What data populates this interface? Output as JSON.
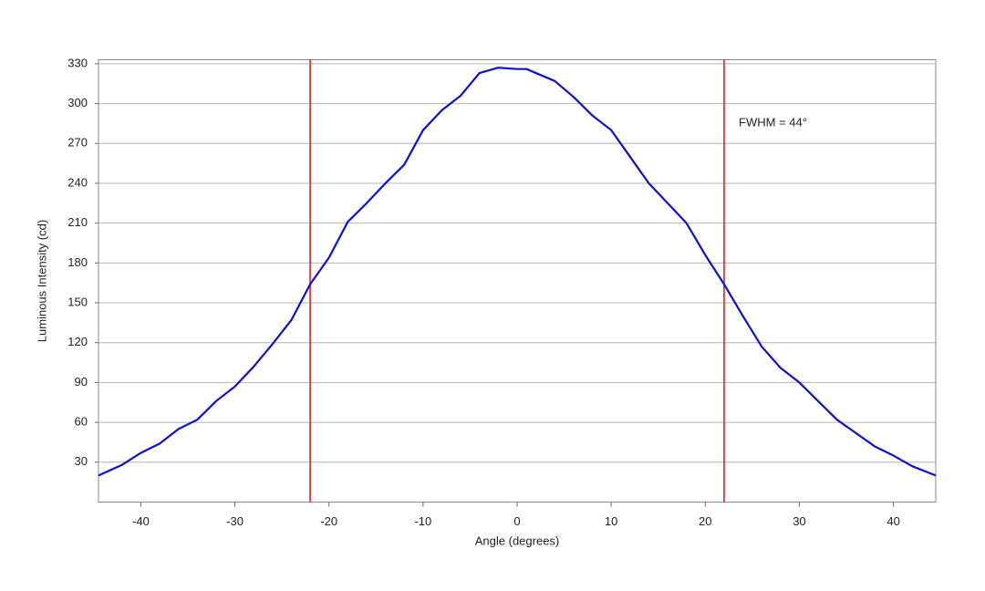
{
  "chart_data": {
    "type": "line",
    "x_label": "Angle (degrees)",
    "y_label": "Luminous Intensity (cd)",
    "annotation": "FWHM = 44°",
    "x": [
      -44.5,
      -42,
      -40,
      -38,
      -36,
      -34,
      -32,
      -30,
      -28,
      -26,
      -24,
      -22,
      -20,
      -18,
      -16,
      -14,
      -12,
      -10,
      -8,
      -6,
      -4,
      -2,
      0,
      1,
      2,
      4,
      6,
      8,
      10,
      12,
      14,
      16,
      18,
      20,
      22,
      24,
      26,
      28,
      30,
      32,
      34,
      36,
      38,
      40,
      42,
      44.5
    ],
    "series": [
      {
        "name": "Luminous Intensity",
        "color": "#1010d0",
        "values": [
          20,
          28,
          37,
          44,
          55,
          62,
          76,
          87,
          102,
          119,
          137,
          164,
          184,
          211,
          225,
          240,
          254,
          280,
          295,
          306,
          323,
          327,
          326,
          326,
          323,
          317,
          305,
          291,
          280,
          260,
          240,
          225,
          210,
          186,
          164,
          140,
          117,
          101,
          90,
          76,
          62,
          52,
          42,
          35,
          27,
          20
        ]
      }
    ],
    "reference_lines": [
      -22,
      22
    ],
    "reference_color": "#e02020",
    "xlim": [
      -44.5,
      44.5
    ],
    "xticks": [
      -40,
      -30,
      -20,
      -10,
      0,
      10,
      20,
      30,
      40
    ],
    "ylim": [
      0,
      333
    ],
    "yticks": [
      30,
      60,
      90,
      120,
      150,
      180,
      210,
      240,
      270,
      300,
      330
    ],
    "grid": true
  }
}
